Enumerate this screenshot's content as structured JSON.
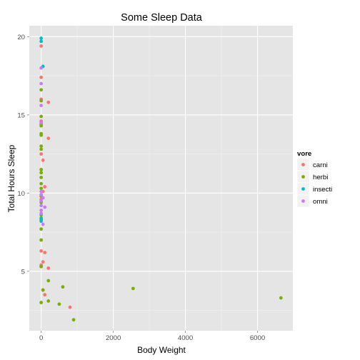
{
  "chart_data": {
    "type": "scatter",
    "title": "Some Sleep Data",
    "xlabel": "Body Weight",
    "ylabel": "Total Hours Sleep",
    "xlim": [
      -330,
      6980
    ],
    "ylim": [
      1.2,
      20.7
    ],
    "xticks": [
      0,
      2000,
      4000,
      6000
    ],
    "yticks": [
      5,
      10,
      15,
      20
    ],
    "grid": true,
    "legend": {
      "title": "vore",
      "placement": "right"
    },
    "series": [
      {
        "name": "carni",
        "color": "#F8766D",
        "points": [
          [
            0,
            19.4
          ],
          [
            0,
            17.4
          ],
          [
            0,
            16.0
          ],
          [
            200,
            15.8
          ],
          [
            0,
            14.6
          ],
          [
            200,
            13.5
          ],
          [
            0,
            12.5
          ],
          [
            50,
            12.1
          ],
          [
            100,
            10.4
          ],
          [
            50,
            10.1
          ],
          [
            0,
            9.6
          ],
          [
            0,
            6.3
          ],
          [
            100,
            6.2
          ],
          [
            50,
            5.6
          ],
          [
            200,
            5.2
          ],
          [
            0,
            5.4
          ],
          [
            50,
            3.8
          ],
          [
            100,
            3.5
          ],
          [
            800,
            2.7
          ],
          [
            0,
            5.3
          ]
        ]
      },
      {
        "name": "herbi",
        "color": "#7CAE00",
        "points": [
          [
            0,
            16.6
          ],
          [
            0,
            15.9
          ],
          [
            0,
            14.9
          ],
          [
            0,
            14.4
          ],
          [
            0,
            14.3
          ],
          [
            0,
            13.8
          ],
          [
            0,
            13.7
          ],
          [
            0,
            13.0
          ],
          [
            0,
            12.8
          ],
          [
            0,
            11.5
          ],
          [
            0,
            11.3
          ],
          [
            0,
            11.0
          ],
          [
            0,
            10.6
          ],
          [
            0,
            10.3
          ],
          [
            0,
            9.8
          ],
          [
            0,
            9.4
          ],
          [
            0,
            8.6
          ],
          [
            0,
            8.3
          ],
          [
            0,
            7.7
          ],
          [
            0,
            7.0
          ],
          [
            0,
            5.3
          ],
          [
            0,
            3.0
          ],
          [
            50,
            3.8
          ],
          [
            200,
            4.4
          ],
          [
            200,
            3.1
          ],
          [
            600,
            4.0
          ],
          [
            500,
            2.9
          ],
          [
            900,
            1.9
          ],
          [
            2550,
            3.9
          ],
          [
            6650,
            3.3
          ]
        ]
      },
      {
        "name": "insecti",
        "color": "#00BFC4",
        "points": [
          [
            0,
            19.9
          ],
          [
            0,
            19.7
          ],
          [
            50,
            18.1
          ],
          [
            0,
            8.4
          ],
          [
            0,
            8.2
          ]
        ]
      },
      {
        "name": "omni",
        "color": "#C77CFF",
        "points": [
          [
            0,
            18.0
          ],
          [
            0,
            17.0
          ],
          [
            0,
            15.6
          ],
          [
            0,
            14.5
          ],
          [
            0,
            10.1
          ],
          [
            0,
            9.9
          ],
          [
            50,
            9.7
          ],
          [
            0,
            9.5
          ],
          [
            0,
            9.2
          ],
          [
            100,
            9.1
          ],
          [
            0,
            8.9
          ],
          [
            0,
            8.7
          ],
          [
            50,
            8.0
          ]
        ]
      }
    ]
  }
}
